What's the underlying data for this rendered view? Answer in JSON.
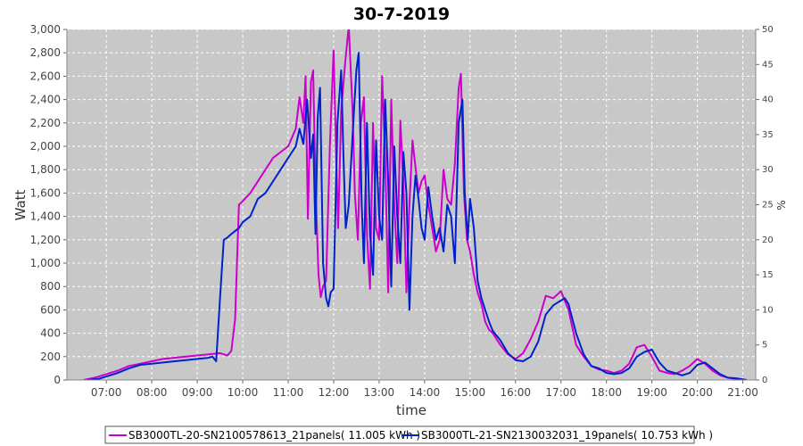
{
  "chart_data": {
    "type": "line",
    "title": "30-7-2019",
    "xlabel": "time",
    "ylabel": "Watt",
    "y2label": "%",
    "xlim": [
      "06:08",
      "21:17"
    ],
    "ylim": [
      0,
      3000
    ],
    "y2lim": [
      0,
      50
    ],
    "x_ticks": [
      "07:00",
      "08:00",
      "09:00",
      "10:00",
      "11:00",
      "12:00",
      "13:00",
      "14:00",
      "15:00",
      "16:00",
      "17:00",
      "18:00",
      "19:00",
      "20:00",
      "21:00"
    ],
    "y_ticks": [
      "0",
      "200",
      "400",
      "600",
      "800",
      "1,000",
      "1,200",
      "1,400",
      "1,600",
      "1,800",
      "2,000",
      "2,200",
      "2,400",
      "2,600",
      "2,800",
      "3,000"
    ],
    "y2_ticks": [
      "0",
      "5",
      "10",
      "15",
      "20",
      "25",
      "30",
      "35",
      "40",
      "45",
      "50"
    ],
    "grid": true,
    "legend_position": "bottom",
    "series": [
      {
        "name": "SB3000TL-20-SN2100578613_21panels( 11.005 kWh )",
        "color": "#cc00cc",
        "points": [
          [
            "06:30",
            0
          ],
          [
            "06:45",
            20
          ],
          [
            "07:00",
            50
          ],
          [
            "07:15",
            80
          ],
          [
            "07:30",
            120
          ],
          [
            "07:45",
            140
          ],
          [
            "08:00",
            160
          ],
          [
            "08:15",
            180
          ],
          [
            "08:30",
            190
          ],
          [
            "08:45",
            200
          ],
          [
            "09:00",
            210
          ],
          [
            "09:15",
            220
          ],
          [
            "09:30",
            230
          ],
          [
            "09:40",
            210
          ],
          [
            "09:45",
            250
          ],
          [
            "09:50",
            520
          ],
          [
            "09:55",
            1500
          ],
          [
            "10:00",
            1530
          ],
          [
            "10:10",
            1600
          ],
          [
            "10:20",
            1700
          ],
          [
            "10:30",
            1800
          ],
          [
            "10:40",
            1900
          ],
          [
            "10:50",
            1950
          ],
          [
            "11:00",
            2000
          ],
          [
            "11:10",
            2150
          ],
          [
            "11:15",
            2420
          ],
          [
            "11:20",
            2200
          ],
          [
            "11:23",
            2600
          ],
          [
            "11:26",
            1380
          ],
          [
            "11:30",
            2550
          ],
          [
            "11:33",
            2650
          ],
          [
            "11:36",
            1650
          ],
          [
            "11:40",
            900
          ],
          [
            "11:43",
            710
          ],
          [
            "11:46",
            800
          ],
          [
            "11:50",
            850
          ],
          [
            "11:55",
            2000
          ],
          [
            "12:00",
            2820
          ],
          [
            "12:03",
            2000
          ],
          [
            "12:06",
            1300
          ],
          [
            "12:10",
            2300
          ],
          [
            "12:15",
            2700
          ],
          [
            "12:20",
            3030
          ],
          [
            "12:25",
            2300
          ],
          [
            "12:28",
            1600
          ],
          [
            "12:32",
            1200
          ],
          [
            "12:36",
            2200
          ],
          [
            "12:40",
            2420
          ],
          [
            "12:44",
            1250
          ],
          [
            "12:48",
            780
          ],
          [
            "12:52",
            2200
          ],
          [
            "12:56",
            1300
          ],
          [
            "13:00",
            1200
          ],
          [
            "13:04",
            2600
          ],
          [
            "13:08",
            1900
          ],
          [
            "13:12",
            750
          ],
          [
            "13:16",
            2400
          ],
          [
            "13:20",
            1500
          ],
          [
            "13:24",
            1000
          ],
          [
            "13:28",
            2220
          ],
          [
            "13:32",
            1700
          ],
          [
            "13:36",
            750
          ],
          [
            "13:40",
            1500
          ],
          [
            "13:44",
            2050
          ],
          [
            "13:48",
            1820
          ],
          [
            "13:52",
            1600
          ],
          [
            "13:56",
            1700
          ],
          [
            "14:00",
            1750
          ],
          [
            "14:05",
            1500
          ],
          [
            "14:10",
            1300
          ],
          [
            "14:15",
            1100
          ],
          [
            "14:20",
            1200
          ],
          [
            "14:25",
            1800
          ],
          [
            "14:30",
            1550
          ],
          [
            "14:35",
            1500
          ],
          [
            "14:40",
            1850
          ],
          [
            "14:45",
            2500
          ],
          [
            "14:48",
            2620
          ],
          [
            "14:52",
            1600
          ],
          [
            "14:56",
            1200
          ],
          [
            "15:00",
            1100
          ],
          [
            "15:05",
            900
          ],
          [
            "15:10",
            750
          ],
          [
            "15:15",
            650
          ],
          [
            "15:20",
            500
          ],
          [
            "15:25",
            430
          ],
          [
            "15:30",
            400
          ],
          [
            "15:40",
            300
          ],
          [
            "15:50",
            220
          ],
          [
            "16:00",
            180
          ],
          [
            "16:10",
            230
          ],
          [
            "16:20",
            350
          ],
          [
            "16:30",
            500
          ],
          [
            "16:40",
            720
          ],
          [
            "16:50",
            700
          ],
          [
            "17:00",
            760
          ],
          [
            "17:10",
            600
          ],
          [
            "17:20",
            300
          ],
          [
            "17:30",
            200
          ],
          [
            "17:40",
            120
          ],
          [
            "17:50",
            90
          ],
          [
            "18:00",
            80
          ],
          [
            "18:10",
            60
          ],
          [
            "18:20",
            80
          ],
          [
            "18:30",
            140
          ],
          [
            "18:40",
            280
          ],
          [
            "18:50",
            300
          ],
          [
            "19:00",
            200
          ],
          [
            "19:10",
            80
          ],
          [
            "19:20",
            60
          ],
          [
            "19:30",
            50
          ],
          [
            "19:40",
            80
          ],
          [
            "19:50",
            120
          ],
          [
            "20:00",
            180
          ],
          [
            "20:10",
            140
          ],
          [
            "20:20",
            80
          ],
          [
            "20:30",
            40
          ],
          [
            "20:40",
            20
          ],
          [
            "20:50",
            10
          ],
          [
            "21:00",
            0
          ]
        ]
      },
      {
        "name": "SB3000TL-21-SN2130032031_19panels( 10.753 kWh )",
        "color": "#0022cc",
        "points": [
          [
            "06:35",
            0
          ],
          [
            "06:50",
            10
          ],
          [
            "07:00",
            30
          ],
          [
            "07:15",
            60
          ],
          [
            "07:30",
            100
          ],
          [
            "07:45",
            130
          ],
          [
            "08:00",
            140
          ],
          [
            "08:15",
            150
          ],
          [
            "08:30",
            160
          ],
          [
            "08:45",
            170
          ],
          [
            "09:00",
            180
          ],
          [
            "09:15",
            190
          ],
          [
            "09:20",
            200
          ],
          [
            "09:25",
            160
          ],
          [
            "09:30",
            700
          ],
          [
            "09:35",
            1200
          ],
          [
            "09:40",
            1220
          ],
          [
            "09:45",
            1250
          ],
          [
            "09:55",
            1300
          ],
          [
            "10:00",
            1350
          ],
          [
            "10:10",
            1400
          ],
          [
            "10:20",
            1550
          ],
          [
            "10:30",
            1600
          ],
          [
            "10:40",
            1700
          ],
          [
            "10:50",
            1800
          ],
          [
            "11:00",
            1900
          ],
          [
            "11:10",
            2000
          ],
          [
            "11:15",
            2150
          ],
          [
            "11:20",
            2020
          ],
          [
            "11:25",
            2400
          ],
          [
            "11:30",
            1900
          ],
          [
            "11:33",
            2100
          ],
          [
            "11:36",
            1250
          ],
          [
            "11:39",
            2250
          ],
          [
            "11:42",
            2500
          ],
          [
            "11:46",
            1000
          ],
          [
            "11:50",
            700
          ],
          [
            "11:53",
            630
          ],
          [
            "11:56",
            750
          ],
          [
            "12:00",
            780
          ],
          [
            "12:05",
            2200
          ],
          [
            "12:10",
            2650
          ],
          [
            "12:13",
            1900
          ],
          [
            "12:16",
            1300
          ],
          [
            "12:20",
            1500
          ],
          [
            "12:25",
            2100
          ],
          [
            "12:30",
            2650
          ],
          [
            "12:33",
            2800
          ],
          [
            "12:37",
            1500
          ],
          [
            "12:40",
            1000
          ],
          [
            "12:44",
            2200
          ],
          [
            "12:48",
            1250
          ],
          [
            "12:52",
            900
          ],
          [
            "12:56",
            2050
          ],
          [
            "13:00",
            1400
          ],
          [
            "13:04",
            1200
          ],
          [
            "13:08",
            2400
          ],
          [
            "13:12",
            1700
          ],
          [
            "13:16",
            800
          ],
          [
            "13:20",
            2000
          ],
          [
            "13:24",
            1400
          ],
          [
            "13:28",
            1000
          ],
          [
            "13:32",
            1950
          ],
          [
            "13:36",
            1600
          ],
          [
            "13:40",
            600
          ],
          [
            "13:44",
            1400
          ],
          [
            "13:48",
            1750
          ],
          [
            "13:52",
            1550
          ],
          [
            "13:56",
            1300
          ],
          [
            "14:00",
            1200
          ],
          [
            "14:05",
            1650
          ],
          [
            "14:10",
            1400
          ],
          [
            "14:15",
            1200
          ],
          [
            "14:20",
            1300
          ],
          [
            "14:25",
            1100
          ],
          [
            "14:30",
            1500
          ],
          [
            "14:35",
            1400
          ],
          [
            "14:40",
            1000
          ],
          [
            "14:45",
            2200
          ],
          [
            "14:50",
            2400
          ],
          [
            "14:53",
            1600
          ],
          [
            "14:57",
            1200
          ],
          [
            "15:00",
            1550
          ],
          [
            "15:05",
            1300
          ],
          [
            "15:10",
            850
          ],
          [
            "15:15",
            700
          ],
          [
            "15:20",
            600
          ],
          [
            "15:25",
            500
          ],
          [
            "15:30",
            420
          ],
          [
            "15:40",
            340
          ],
          [
            "15:50",
            230
          ],
          [
            "16:00",
            170
          ],
          [
            "16:10",
            160
          ],
          [
            "16:20",
            200
          ],
          [
            "16:30",
            330
          ],
          [
            "16:40",
            560
          ],
          [
            "16:50",
            640
          ],
          [
            "17:00",
            680
          ],
          [
            "17:05",
            700
          ],
          [
            "17:10",
            650
          ],
          [
            "17:20",
            400
          ],
          [
            "17:30",
            220
          ],
          [
            "17:40",
            120
          ],
          [
            "17:50",
            100
          ],
          [
            "18:00",
            60
          ],
          [
            "18:10",
            50
          ],
          [
            "18:20",
            60
          ],
          [
            "18:30",
            100
          ],
          [
            "18:40",
            200
          ],
          [
            "18:50",
            240
          ],
          [
            "19:00",
            260
          ],
          [
            "19:10",
            150
          ],
          [
            "19:20",
            80
          ],
          [
            "19:30",
            60
          ],
          [
            "19:40",
            40
          ],
          [
            "19:50",
            60
          ],
          [
            "20:00",
            130
          ],
          [
            "20:10",
            150
          ],
          [
            "20:20",
            100
          ],
          [
            "20:30",
            50
          ],
          [
            "20:40",
            20
          ],
          [
            "20:50",
            15
          ],
          [
            "21:00",
            5
          ],
          [
            "21:05",
            0
          ]
        ]
      }
    ]
  }
}
